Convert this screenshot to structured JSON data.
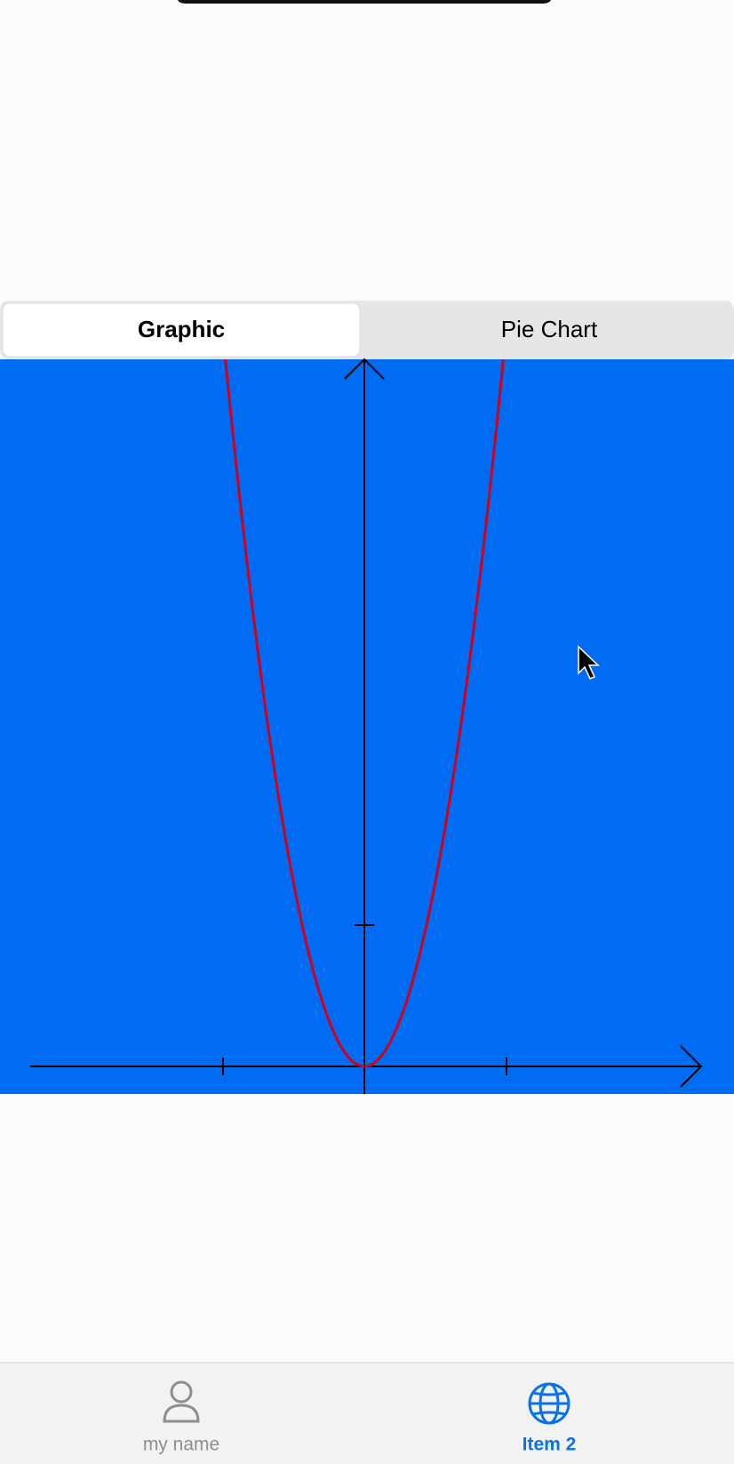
{
  "segments": [
    "Graphic",
    "Pie Chart"
  ],
  "tabs": [
    "my name",
    "Item 2"
  ]
}
